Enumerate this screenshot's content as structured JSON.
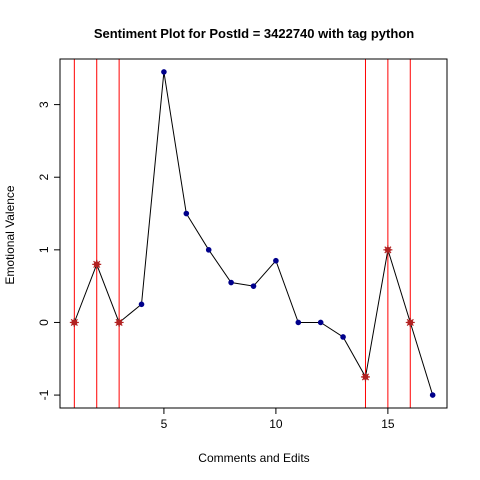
{
  "chart_data": {
    "type": "line",
    "title": "Sentiment Plot for PostId =  3422740  with tag  python",
    "xlabel": "Comments and Edits",
    "ylabel": "Emotional Valence",
    "xlim": [
      0.36,
      17.64
    ],
    "ylim": [
      -1.178,
      3.628
    ],
    "xticks": [
      5,
      10,
      15
    ],
    "yticks": [
      -1,
      0,
      1,
      2,
      3
    ],
    "grid": false,
    "legend": "none",
    "line_color": "#000000",
    "point_color": "#00008b",
    "event_color": "#ff0000",
    "event_marker_color": "#b22222",
    "x": [
      1,
      2,
      3,
      4,
      5,
      6,
      7,
      8,
      9,
      10,
      11,
      12,
      13,
      14,
      15,
      16,
      17
    ],
    "y": [
      0,
      0.8,
      0,
      0.25,
      3.45,
      1.5,
      1.0,
      0.55,
      0.5,
      0.85,
      0,
      0,
      -0.2,
      -0.75,
      1.0,
      0,
      -1.0
    ],
    "vertical_lines": [
      1,
      2,
      3,
      14,
      15,
      16
    ]
  }
}
